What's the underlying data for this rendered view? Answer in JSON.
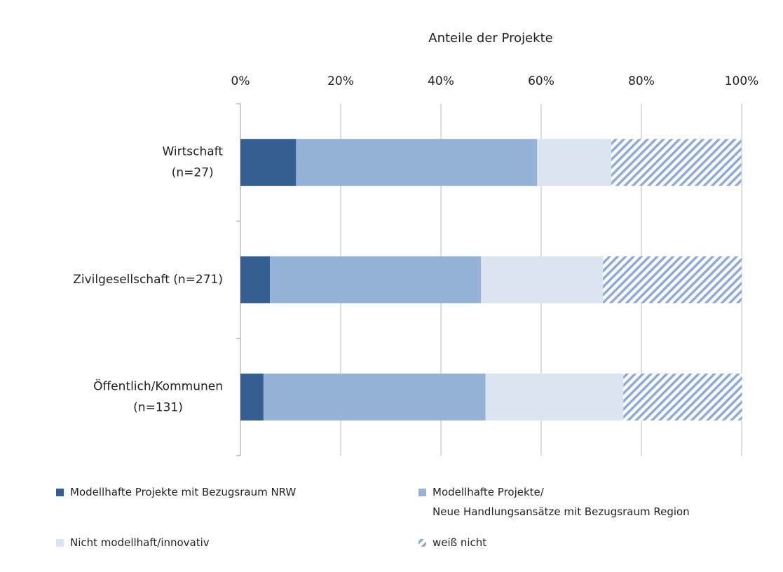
{
  "chart_data": {
    "type": "stacked_barh",
    "x_label": "Anteile der Projekte",
    "categories": [
      "Wirtschaft\n(n=27)",
      "Zivilgesellschaft (n=271)",
      "Öffentlich/Kommunen\n(n=131)"
    ],
    "series": [
      {
        "name": "Modellhafte Projekte mit Bezugsraum NRW",
        "color": "#355f91",
        "values": [
          11.1,
          5.9,
          4.6
        ]
      },
      {
        "name": "Modellhafte Projekte/\nNeue Handlungsansätze mit Bezugsraum Region",
        "color": "#95b3d7",
        "values": [
          48.1,
          42.1,
          44.3
        ]
      },
      {
        "name": "Nicht modellhaft/innovativ",
        "color": "#dbe5f1",
        "values": [
          14.8,
          24.3,
          27.5
        ]
      },
      {
        "name": "weiß nicht",
        "color": "#8eaadb",
        "pattern": "hatch",
        "values": [
          25.9,
          27.7,
          23.7
        ]
      }
    ],
    "xlim": [
      0,
      100
    ],
    "xticks": [
      {
        "value": 0,
        "label": "0%"
      },
      {
        "value": 20,
        "label": "20%"
      },
      {
        "value": 40,
        "label": "40%"
      },
      {
        "value": 60,
        "label": "60%"
      },
      {
        "value": 80,
        "label": "80%"
      },
      {
        "value": 100,
        "label": "100%"
      }
    ],
    "grid": true,
    "legend": "bottom"
  }
}
